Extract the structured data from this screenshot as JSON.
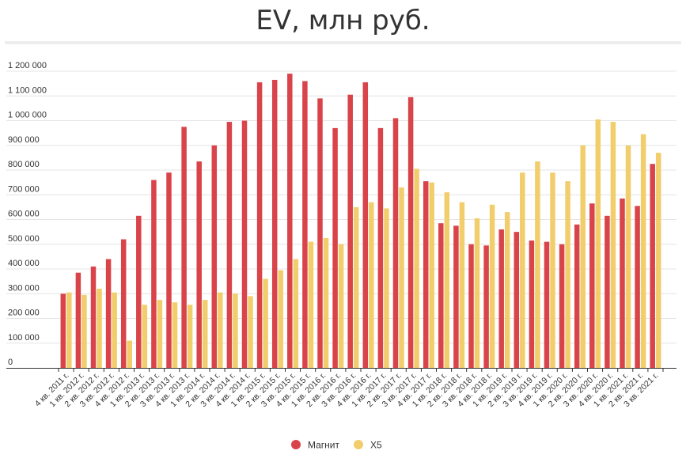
{
  "chart_data": {
    "type": "bar",
    "title": "EV, млн руб.",
    "xlabel": "",
    "ylabel": "",
    "ylim": [
      0,
      1200000
    ],
    "yticks": [
      0,
      100000,
      200000,
      300000,
      400000,
      500000,
      600000,
      700000,
      800000,
      900000,
      1000000,
      1100000,
      1200000
    ],
    "ytick_labels": [
      "0",
      "100 000",
      "200 000",
      "300 000",
      "400 000",
      "500 000",
      "600 000",
      "700 000",
      "800 000",
      "900 000",
      "1 000 000",
      "1 100 000",
      "1 200 000"
    ],
    "grid": true,
    "legend_position": "bottom",
    "categories": [
      "4 кв. 2011 г.",
      "1 кв. 2012 г.",
      "2 кв. 2012 г.",
      "3 кв. 2012 г.",
      "4 кв. 2012 г.",
      "1 кв. 2013 г.",
      "2 кв. 2013 г.",
      "3 кв. 2013 г.",
      "4 кв. 2013 г.",
      "1 кв. 2014 г.",
      "2 кв. 2014 г.",
      "3 кв. 2014 г.",
      "4 кв. 2014 г.",
      "1 кв. 2015 г.",
      "2 кв. 2015 г.",
      "3 кв. 2015 г.",
      "4 кв. 2015 г.",
      "1 кв. 2016 г.",
      "2 кв. 2016 г.",
      "3 кв. 2016 г.",
      "4 кв. 2016 г.",
      "1 кв. 2017 г.",
      "2 кв. 2017 г.",
      "3 кв. 2017 г.",
      "4 кв. 2017 г.",
      "1 кв. 2018 г.",
      "2 кв. 2018 г.",
      "3 кв. 2018 г.",
      "4 кв. 2018 г.",
      "1 кв. 2019 г.",
      "2 кв. 2019 г.",
      "3 кв. 2019 г.",
      "4 кв. 2019 г.",
      "1 кв. 2020 г.",
      "2 кв. 2020 г.",
      "3 кв. 2020 г.",
      "4 кв. 2020 г.",
      "1 кв. 2021 г.",
      "2 кв. 2021 г.",
      "3 кв. 2021 г."
    ],
    "series": [
      {
        "name": "Магнит",
        "color": "#d9444b",
        "values": [
          300000,
          385000,
          410000,
          440000,
          520000,
          615000,
          760000,
          790000,
          975000,
          835000,
          900000,
          995000,
          1000000,
          1155000,
          1165000,
          1190000,
          1160000,
          1090000,
          970000,
          1105000,
          1155000,
          970000,
          1010000,
          1095000,
          755000,
          585000,
          575000,
          500000,
          495000,
          560000,
          550000,
          515000,
          510000,
          500000,
          580000,
          665000,
          615000,
          685000,
          655000,
          825000
        ]
      },
      {
        "name": "X5",
        "color": "#f2cd6b",
        "values": [
          305000,
          295000,
          320000,
          305000,
          110000,
          255000,
          275000,
          265000,
          255000,
          275000,
          305000,
          300000,
          290000,
          360000,
          395000,
          440000,
          510000,
          525000,
          500000,
          650000,
          670000,
          645000,
          730000,
          805000,
          750000,
          710000,
          670000,
          605000,
          660000,
          630000,
          790000,
          835000,
          790000,
          755000,
          900000,
          1005000,
          995000,
          900000,
          945000,
          870000
        ]
      }
    ]
  }
}
